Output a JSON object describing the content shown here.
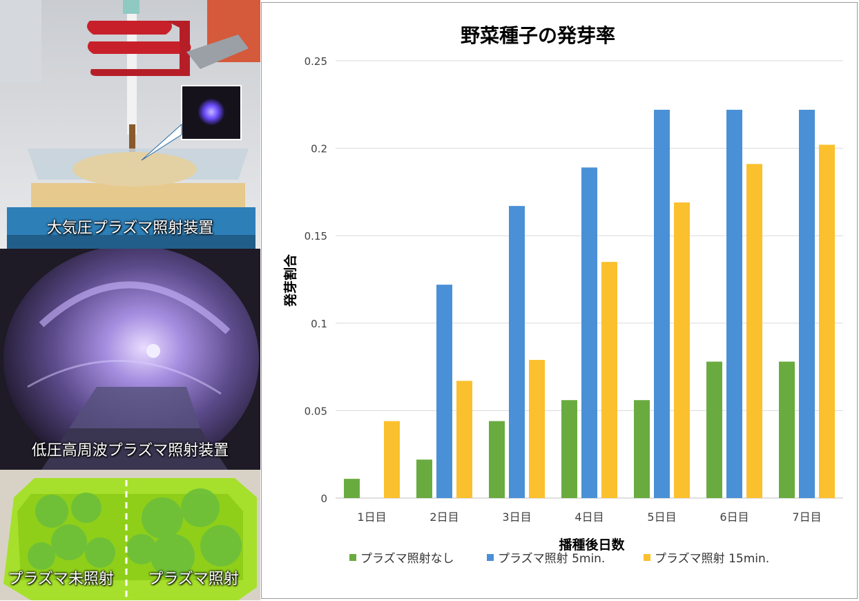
{
  "photos": {
    "top_caption": "大気圧プラズマ照射装置",
    "middle_caption": "低圧高周波プラズマ照射装置",
    "bottom_left_caption": "プラズマ未照射",
    "bottom_right_caption": "プラズマ照射"
  },
  "colors": {
    "series_none": "#6aab3f",
    "series_5min": "#4a90d6",
    "series_15min": "#fbc02d",
    "gridline": "#d9d9d9"
  },
  "chart_data": {
    "type": "bar",
    "title": "野菜種子の発芽率",
    "xlabel": "播種後日数",
    "ylabel": "発芽割合",
    "categories": [
      "1日目",
      "2日目",
      "3日目",
      "4日目",
      "5日目",
      "6日目",
      "7日目"
    ],
    "ylim": [
      0,
      0.25
    ],
    "yticks": [
      0,
      0.05,
      0.1,
      0.15,
      0.2,
      0.25
    ],
    "ytick_labels": [
      "0",
      "0.05",
      "0.1",
      "0.15",
      "0.2",
      "0.25"
    ],
    "grid": true,
    "legend_position": "bottom",
    "series": [
      {
        "name": "プラズマ照射なし",
        "values": [
          0.011,
          0.022,
          0.044,
          0.056,
          0.056,
          0.078,
          0.078
        ]
      },
      {
        "name": "プラズマ照射 5min.",
        "values": [
          0,
          0.122,
          0.167,
          0.189,
          0.222,
          0.222,
          0.222
        ]
      },
      {
        "name": "プラズマ照射 15min.",
        "values": [
          0.044,
          0.067,
          0.079,
          0.135,
          0.169,
          0.191,
          0.202
        ]
      }
    ]
  }
}
